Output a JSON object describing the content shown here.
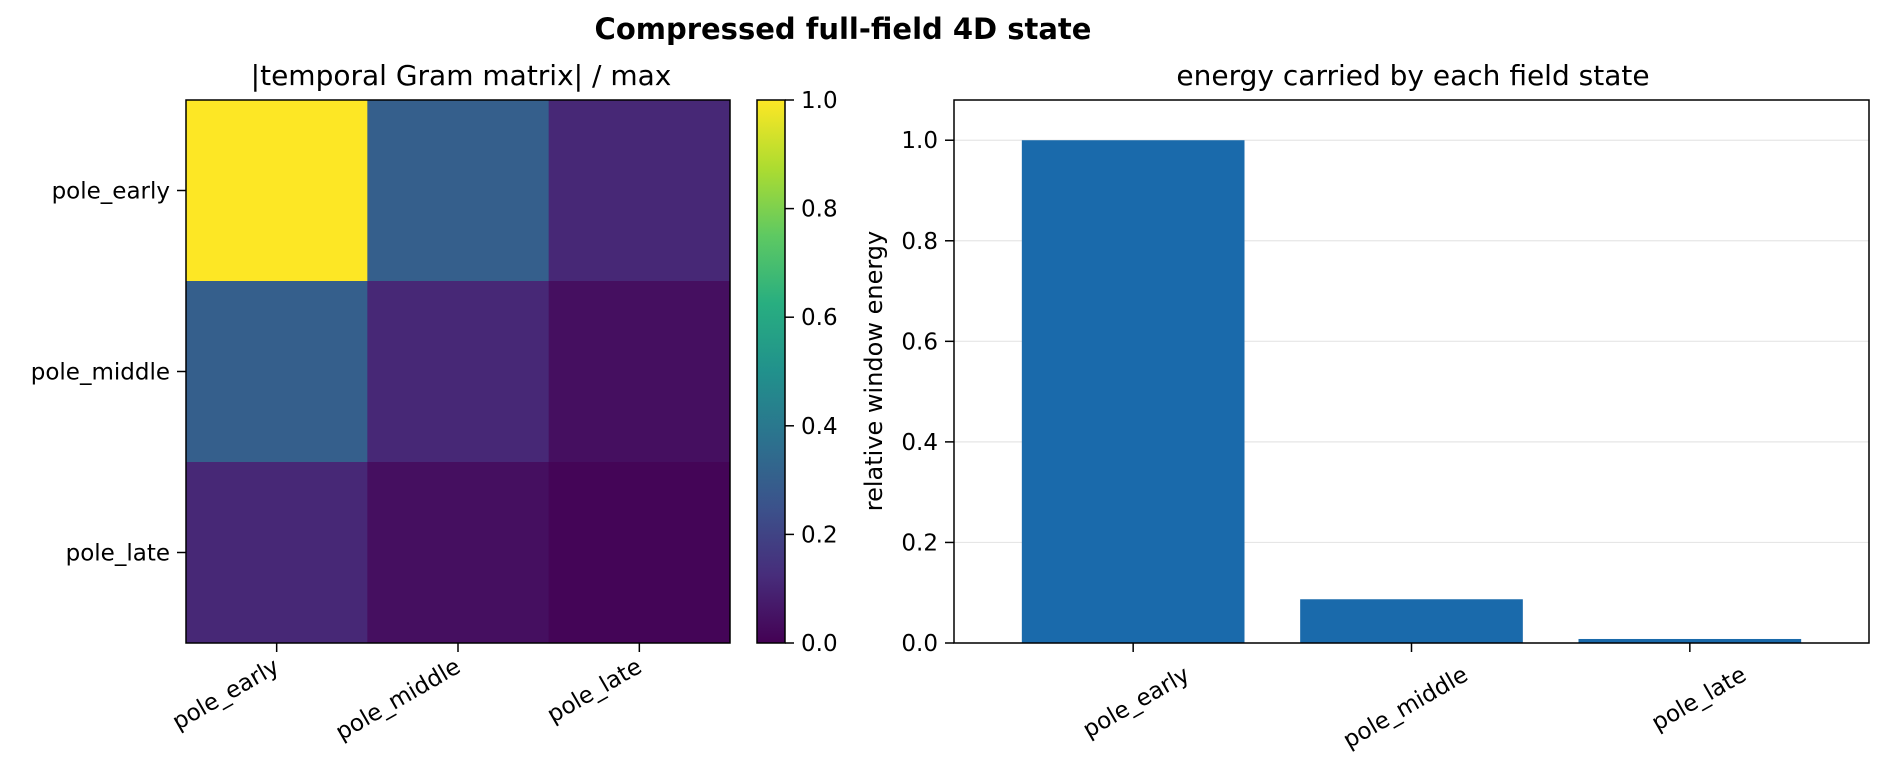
{
  "figure": {
    "title": "Compressed full-field 4D state"
  },
  "chart_data": [
    {
      "type": "heatmap",
      "title": "|temporal Gram matrix| / max",
      "xlabel": "",
      "ylabel": "",
      "x_categories": [
        "pole_early",
        "pole_middle",
        "pole_late"
      ],
      "y_categories": [
        "pole_early",
        "pole_middle",
        "pole_late"
      ],
      "values": [
        [
          1.0,
          0.3,
          0.11
        ],
        [
          0.3,
          0.11,
          0.04
        ],
        [
          0.11,
          0.04,
          0.01
        ]
      ],
      "colormap": "viridis",
      "colorbar": {
        "range": [
          0.0,
          1.0
        ],
        "ticks": [
          "0.0",
          "0.2",
          "0.4",
          "0.6",
          "0.8",
          "1.0"
        ]
      }
    },
    {
      "type": "bar",
      "title": "energy carried by each field state",
      "xlabel": "",
      "ylabel": "relative window energy",
      "categories": [
        "pole_early",
        "pole_middle",
        "pole_late"
      ],
      "values": [
        1.0,
        0.087,
        0.008
      ],
      "ylim": [
        0.0,
        1.08
      ],
      "yticks": [
        "0.0",
        "0.2",
        "0.4",
        "0.6",
        "0.8",
        "1.0"
      ],
      "grid": "y",
      "bar_color": "#1a6aab"
    }
  ]
}
